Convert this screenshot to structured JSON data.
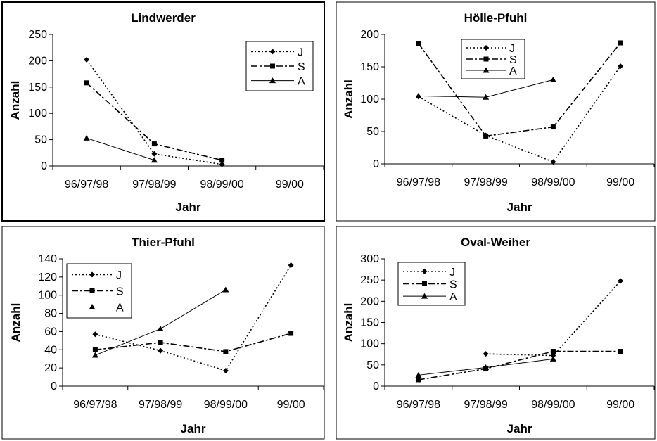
{
  "chart_data": [
    {
      "type": "line",
      "title": "Lindwerder",
      "xlabel": "Jahr",
      "ylabel": "Anzahl",
      "categories": [
        "96/97/98",
        "97/98/99",
        "98/99/00",
        "99/00"
      ],
      "ylim": [
        0,
        250
      ],
      "yticks": [
        0,
        50,
        100,
        150,
        200,
        250
      ],
      "grid": false,
      "legend": "top-right",
      "series": [
        {
          "name": "J",
          "values": [
            202,
            23,
            3,
            null
          ]
        },
        {
          "name": "S",
          "values": [
            158,
            42,
            11,
            null
          ]
        },
        {
          "name": "A",
          "values": [
            53,
            11,
            null,
            null
          ]
        }
      ]
    },
    {
      "type": "line",
      "title": "Hölle-Pfuhl",
      "xlabel": "Jahr",
      "ylabel": "Anzahl",
      "categories": [
        "96/97/98",
        "97/98/99",
        "98/99/00",
        "99/00"
      ],
      "ylim": [
        0,
        200
      ],
      "yticks": [
        0,
        50,
        100,
        150,
        200
      ],
      "grid": false,
      "legend": "top-center",
      "series": [
        {
          "name": "J",
          "values": [
            104,
            44,
            3,
            151
          ]
        },
        {
          "name": "S",
          "values": [
            186,
            43,
            57,
            187
          ]
        },
        {
          "name": "A",
          "values": [
            105,
            103,
            130,
            null
          ]
        }
      ]
    },
    {
      "type": "line",
      "title": "Thier-Pfuhl",
      "xlabel": "Jahr",
      "ylabel": "Anzahl",
      "categories": [
        "96/97/98",
        "97/98/99",
        "98/99/00",
        "99/00"
      ],
      "ylim": [
        0,
        140
      ],
      "yticks": [
        0,
        20,
        40,
        60,
        80,
        100,
        120,
        140
      ],
      "grid": false,
      "legend": "top-left",
      "series": [
        {
          "name": "J",
          "values": [
            57,
            39,
            17,
            133
          ]
        },
        {
          "name": "S",
          "values": [
            40,
            48,
            38,
            58
          ]
        },
        {
          "name": "A",
          "values": [
            34,
            63,
            106,
            null
          ]
        }
      ]
    },
    {
      "type": "line",
      "title": "Oval-Weiher",
      "xlabel": "Jahr",
      "ylabel": "Anzahl",
      "categories": [
        "96/97/98",
        "97/98/99",
        "98/99/00",
        "99/00"
      ],
      "ylim": [
        0,
        300
      ],
      "yticks": [
        0,
        50,
        100,
        150,
        200,
        250,
        300
      ],
      "grid": false,
      "legend": "top-left",
      "series": [
        {
          "name": "J",
          "values": [
            null,
            76,
            72,
            248
          ]
        },
        {
          "name": "S",
          "values": [
            15,
            41,
            82,
            82
          ]
        },
        {
          "name": "A",
          "values": [
            26,
            44,
            64,
            null
          ]
        }
      ]
    }
  ]
}
